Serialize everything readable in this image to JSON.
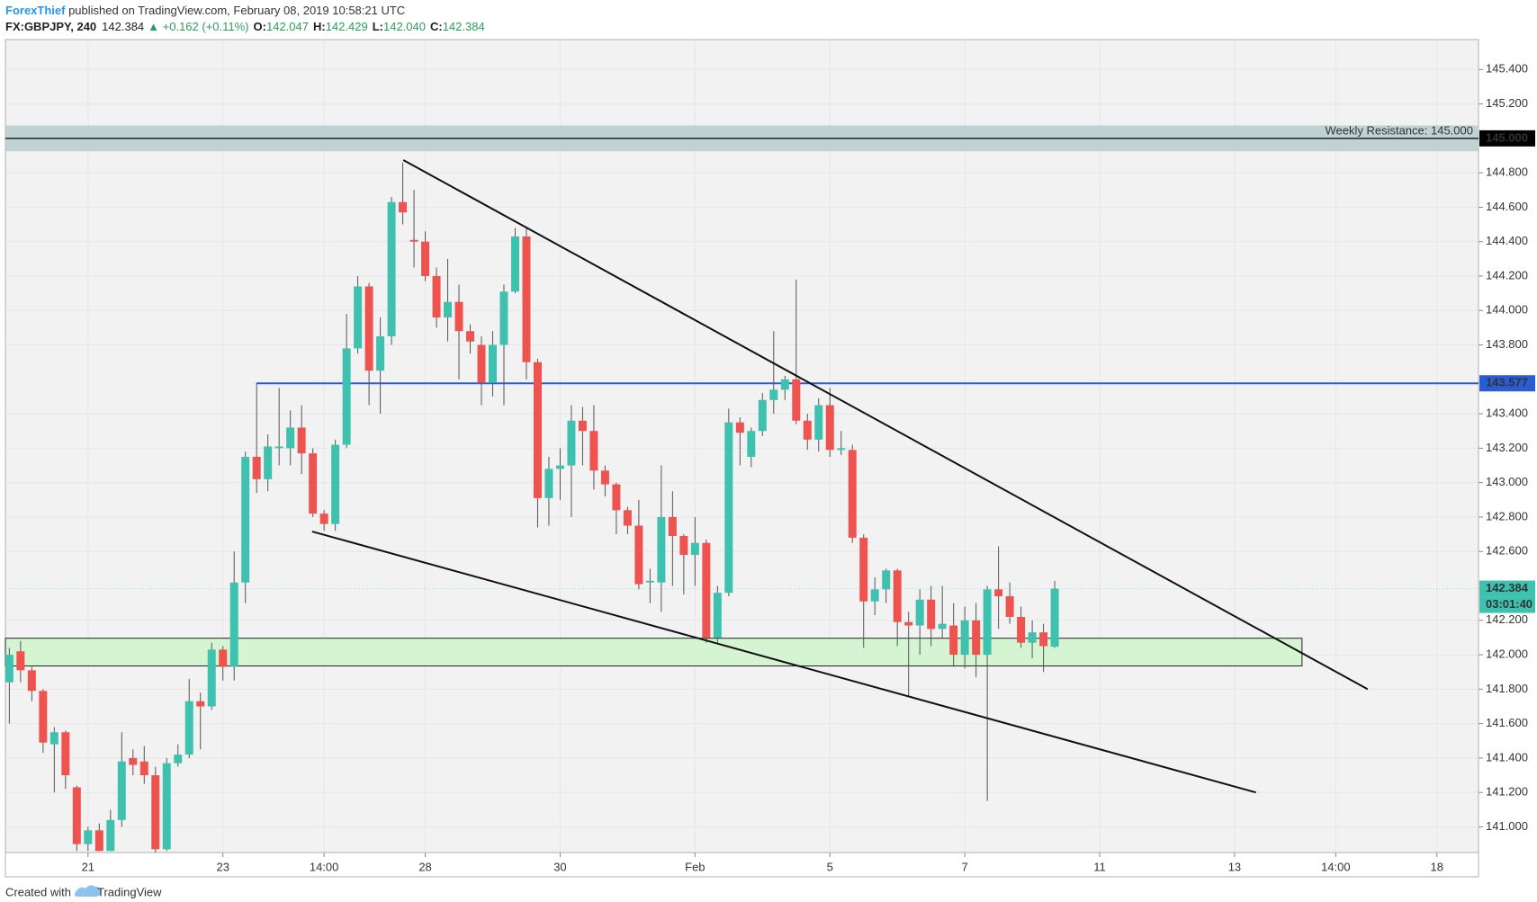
{
  "header": {
    "author": "ForexThief",
    "published": " published on TradingView.com, February 08, 2019 10:58:21 UTC",
    "symbol": "FX:GBPJPY, 240",
    "last": "142.384",
    "change": "▲ +0.162 (+0.11%)",
    "quote": [
      {
        "label": "O:",
        "value": "142.047"
      },
      {
        "label": "H:",
        "value": "142.429"
      },
      {
        "label": "L:",
        "value": "142.040"
      },
      {
        "label": "C:",
        "value": "142.384"
      }
    ]
  },
  "footer": {
    "created": "Created with",
    "brand": "TradingView"
  },
  "chart_data": {
    "type": "candlestick",
    "up_color": "#3fc1b0",
    "down_color": "#ef5350",
    "open": [
      141.84,
      142.02,
      141.91,
      141.79,
      141.48,
      141.55,
      141.23,
      140.9,
      140.98,
      140.86,
      141.04,
      141.4,
      141.38,
      141.3,
      140.87,
      141.37,
      141.42,
      141.73,
      141.7,
      142.03,
      141.93,
      142.42,
      143.15,
      143.02,
      143.2,
      143.2,
      143.32,
      143.17,
      142.82,
      142.76,
      143.22,
      143.78,
      144.14,
      143.65,
      143.85,
      144.63,
      144.41,
      144.4,
      144.2,
      143.96,
      144.05,
      143.88,
      143.8,
      143.58,
      143.8,
      144.11,
      144.43,
      143.7,
      142.91,
      143.08,
      143.1,
      143.36,
      143.3,
      143.07,
      142.99,
      142.84,
      142.75,
      142.42,
      142.42,
      142.8,
      142.69,
      142.58,
      142.65,
      142.1,
      142.36,
      143.35,
      143.15,
      143.3,
      143.48,
      143.54,
      143.6,
      143.36,
      143.25,
      143.45,
      143.19,
      143.19,
      142.68,
      142.31,
      142.38,
      142.49,
      142.19,
      142.17,
      142.32,
      142.15,
      142.17,
      142.0,
      142.2,
      142.0,
      142.38,
      142.34,
      142.22,
      142.07,
      142.13,
      142.047
    ],
    "high": [
      142.04,
      142.08,
      141.93,
      141.8,
      141.58,
      141.56,
      141.24,
      141.0,
      141.02,
      141.1,
      141.55,
      141.45,
      141.47,
      141.35,
      141.4,
      141.48,
      141.86,
      141.78,
      142.07,
      142.05,
      142.6,
      143.18,
      143.58,
      143.28,
      143.55,
      143.42,
      143.45,
      143.2,
      142.84,
      143.25,
      143.98,
      144.2,
      144.16,
      143.96,
      144.66,
      144.86,
      144.7,
      144.46,
      144.25,
      144.3,
      144.15,
      143.92,
      143.85,
      143.88,
      144.15,
      144.48,
      144.48,
      143.72,
      143.15,
      143.2,
      143.45,
      143.44,
      143.45,
      143.1,
      143.0,
      142.86,
      142.9,
      142.5,
      143.1,
      142.95,
      142.7,
      142.8,
      142.67,
      142.4,
      143.43,
      143.38,
      143.32,
      143.52,
      143.88,
      143.62,
      144.18,
      143.4,
      143.49,
      143.55,
      143.3,
      143.22,
      142.7,
      142.45,
      142.5,
      142.5,
      142.25,
      142.38,
      142.4,
      142.4,
      142.3,
      142.28,
      142.3,
      142.4,
      142.63,
      142.42,
      142.28,
      142.2,
      142.18,
      142.429
    ],
    "low": [
      141.6,
      141.84,
      141.73,
      141.43,
      141.2,
      141.22,
      140.86,
      140.86,
      140.86,
      140.86,
      141.0,
      141.3,
      141.25,
      140.85,
      140.86,
      141.35,
      141.4,
      141.45,
      141.68,
      141.85,
      141.85,
      142.3,
      142.94,
      142.95,
      143.1,
      143.1,
      143.05,
      142.8,
      142.72,
      142.72,
      143.2,
      143.75,
      143.45,
      143.4,
      143.8,
      144.5,
      144.25,
      144.17,
      143.9,
      143.82,
      143.6,
      143.75,
      143.45,
      143.5,
      143.45,
      144.1,
      143.6,
      142.74,
      142.75,
      142.9,
      142.8,
      143.1,
      142.96,
      142.92,
      142.7,
      142.7,
      142.38,
      142.3,
      142.25,
      142.4,
      142.35,
      142.4,
      142.07,
      142.07,
      142.34,
      143.1,
      143.09,
      143.27,
      143.4,
      143.48,
      143.34,
      143.19,
      143.18,
      143.15,
      143.16,
      142.65,
      142.04,
      142.23,
      142.3,
      142.05,
      141.76,
      142.0,
      142.05,
      142.1,
      141.93,
      141.92,
      141.87,
      141.15,
      142.15,
      142.18,
      142.04,
      141.98,
      141.9,
      142.04
    ],
    "close": [
      142.0,
      141.91,
      141.79,
      141.49,
      141.55,
      141.3,
      140.9,
      140.98,
      140.86,
      141.04,
      141.38,
      141.36,
      141.3,
      140.87,
      141.37,
      141.42,
      141.73,
      141.7,
      142.03,
      141.93,
      142.42,
      143.15,
      143.02,
      143.21,
      143.21,
      143.32,
      143.17,
      142.82,
      142.76,
      143.22,
      143.78,
      144.14,
      143.65,
      143.85,
      144.63,
      144.57,
      144.4,
      144.2,
      143.96,
      144.05,
      143.88,
      143.82,
      143.58,
      143.8,
      144.11,
      144.43,
      143.7,
      142.91,
      143.08,
      143.1,
      143.36,
      143.3,
      143.07,
      142.99,
      142.84,
      142.75,
      142.41,
      142.43,
      142.8,
      142.69,
      142.58,
      142.65,
      142.1,
      142.36,
      143.35,
      143.29,
      143.3,
      143.48,
      143.54,
      143.6,
      143.36,
      143.25,
      143.45,
      143.19,
      143.2,
      142.68,
      142.31,
      142.38,
      142.49,
      142.19,
      142.17,
      142.32,
      142.15,
      142.18,
      142.0,
      142.2,
      142.0,
      142.38,
      142.34,
      142.22,
      142.07,
      142.13,
      142.05,
      142.384
    ],
    "xlim": [
      -0.35,
      130.7
    ],
    "ylim": [
      140.851,
      145.574
    ],
    "xticks": [
      {
        "value": 7,
        "label": "21"
      },
      {
        "value": 19,
        "label": "23"
      },
      {
        "value": 28,
        "label": "14:00"
      },
      {
        "value": 37,
        "label": "28"
      },
      {
        "value": 49,
        "label": "30"
      },
      {
        "value": 61,
        "label": "Feb"
      },
      {
        "value": 73,
        "label": "5"
      },
      {
        "value": 85,
        "label": "7"
      },
      {
        "value": 97,
        "label": "11"
      },
      {
        "value": 109,
        "label": "13"
      },
      {
        "value": 118,
        "label": "14:00"
      },
      {
        "value": 127,
        "label": "18"
      }
    ],
    "yticks": [
      {
        "value": 145.4,
        "label": "145.400"
      },
      {
        "value": 145.2,
        "label": "145.200"
      },
      {
        "value": 144.8,
        "label": "144.800"
      },
      {
        "value": 144.6,
        "label": "144.600"
      },
      {
        "value": 144.4,
        "label": "144.400"
      },
      {
        "value": 144.2,
        "label": "144.200"
      },
      {
        "value": 144.0,
        "label": "144.000"
      },
      {
        "value": 143.8,
        "label": "143.800"
      },
      {
        "value": 143.4,
        "label": "143.400"
      },
      {
        "value": 143.2,
        "label": "143.200"
      },
      {
        "value": 143.0,
        "label": "143.000"
      },
      {
        "value": 142.8,
        "label": "142.800"
      },
      {
        "value": 142.6,
        "label": "142.600"
      },
      {
        "value": 142.2,
        "label": "142.200"
      },
      {
        "value": 142.0,
        "label": "142.000"
      },
      {
        "value": 141.8,
        "label": "141.800"
      },
      {
        "value": 141.6,
        "label": "141.600"
      },
      {
        "value": 141.4,
        "label": "141.400"
      },
      {
        "value": 141.2,
        "label": "141.200"
      },
      {
        "value": 141.0,
        "label": "141.000"
      }
    ],
    "grid": true,
    "resistance": {
      "low": 144.925,
      "high": 145.075,
      "value": 145,
      "text": "Weekly Resistance: 145.000",
      "label": "145.000",
      "color": "#b8ccd0"
    },
    "level": {
      "value": 143.577,
      "label": "143.577",
      "from": 22,
      "color": "#2a5cd6"
    },
    "support": {
      "low": 141.935,
      "high": 142.096,
      "to": 115,
      "color": "#d4f4d2"
    },
    "last_price": {
      "value": 142.384,
      "label": "142.384",
      "countdown": "03:01:40"
    },
    "trendlines": [
      {
        "points": [
          [
            35.05,
            144.874
          ],
          [
            120.84,
            141.8
          ]
        ]
      },
      {
        "points": [
          [
            26.94,
            142.716
          ],
          [
            110.9,
            141.2
          ]
        ]
      }
    ]
  }
}
